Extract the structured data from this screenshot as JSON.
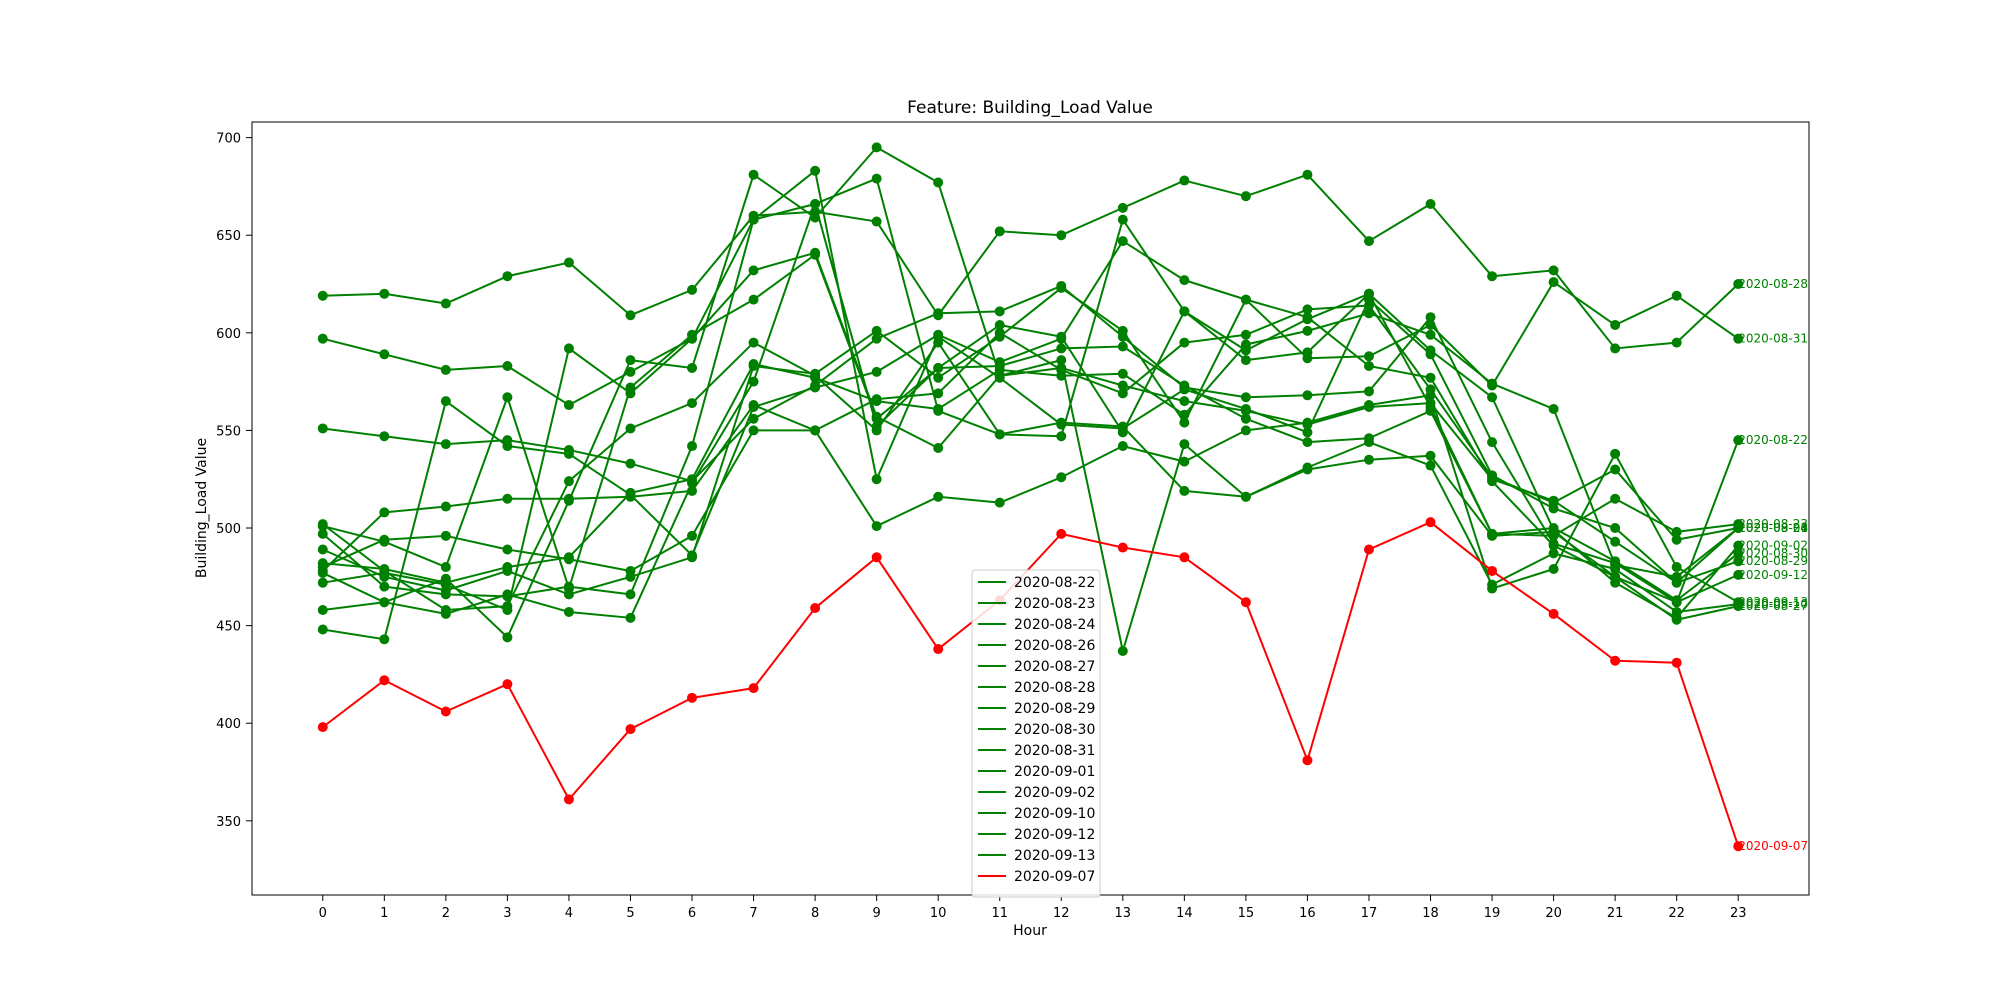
{
  "chart_data": {
    "type": "line",
    "title": "Feature: Building_Load Value",
    "xlabel": "Hour",
    "ylabel": "Building_Load Value",
    "x": [
      0,
      1,
      2,
      3,
      4,
      5,
      6,
      7,
      8,
      9,
      10,
      11,
      12,
      13,
      14,
      15,
      16,
      17,
      18,
      19,
      20,
      21,
      22,
      23
    ],
    "xticks": [
      "0",
      "1",
      "2",
      "3",
      "4",
      "5",
      "6",
      "7",
      "8",
      "9",
      "10",
      "11",
      "12",
      "13",
      "14",
      "15",
      "16",
      "17",
      "18",
      "19",
      "20",
      "21",
      "22",
      "23"
    ],
    "xlim": [
      -1.15,
      24.15
    ],
    "ylim": [
      312,
      708
    ],
    "yticks": [
      "350",
      "400",
      "450",
      "500",
      "550",
      "600",
      "650",
      "700"
    ],
    "grid": false,
    "legend_position": "lower-center",
    "colors": {
      "normal": "#008000",
      "anomaly": "#ff0000"
    },
    "series": [
      {
        "name": "2020-08-22",
        "color": "#008000",
        "values": [
          551,
          547,
          543,
          545,
          540,
          533,
          524,
          556,
          573,
          597,
          610,
          611,
          624,
          598,
          572,
          567,
          568,
          570,
          608,
          544,
          492,
          482,
          462,
          545
        ]
      },
      {
        "name": "2020-08-23",
        "color": "#008000",
        "values": [
          597,
          589,
          581,
          583,
          563,
          580,
          597,
          658,
          666,
          552,
          582,
          583,
          592,
          593,
          573,
          556,
          544,
          546,
          560,
          497,
          496,
          515,
          498,
          502
        ]
      },
      {
        "name": "2020-08-24",
        "color": "#008000",
        "values": [
          482,
          479,
          472,
          480,
          485,
          518,
          525,
          584,
          577,
          565,
          561,
          581,
          578,
          579,
          558,
          594,
          601,
          610,
          599,
          574,
          561,
          481,
          475,
          500
        ]
      },
      {
        "name": "2020-08-26",
        "color": "#008000",
        "values": [
          472,
          477,
          471,
          458,
          592,
          569,
          597,
          632,
          641,
          557,
          541,
          578,
          582,
          573,
          565,
          560,
          553,
          562,
          564,
          525,
          514,
          493,
          472,
          500
        ]
      },
      {
        "name": "2020-08-27",
        "color": "#008000",
        "values": [
          458,
          462,
          456,
          466,
          457,
          454,
          523,
          575,
          666,
          679,
          560,
          548,
          554,
          552,
          519,
          516,
          530,
          535,
          537,
          496,
          498,
          475,
          453,
          460
        ]
      },
      {
        "name": "2020-08-28",
        "color": "#008000",
        "values": [
          619,
          620,
          615,
          629,
          636,
          609,
          622,
          660,
          662,
          657,
          609,
          652,
          650,
          664,
          678,
          670,
          681,
          647,
          666,
          629,
          632,
          592,
          595,
          625
        ]
      },
      {
        "name": "2020-08-29",
        "color": "#008000",
        "values": [
          497,
          470,
          466,
          465,
          470,
          466,
          542,
          658,
          683,
          525,
          598,
          577,
          553,
          551,
          571,
          561,
          549,
          617,
          589,
          527,
          510,
          500,
          472,
          483
        ]
      },
      {
        "name": "2020-08-30",
        "color": "#008000",
        "values": [
          501,
          493,
          480,
          567,
          469,
          572,
          599,
          617,
          640,
          556,
          582,
          604,
          598,
          549,
          611,
          586,
          590,
          620,
          562,
          497,
          500,
          483,
          463,
          487
        ]
      },
      {
        "name": "2020-08-31",
        "color": "#008000",
        "values": [
          448,
          443,
          565,
          542,
          538,
          517,
          486,
          562,
          572,
          580,
          599,
          585,
          597,
          647,
          627,
          617,
          587,
          588,
          604,
          573,
          626,
          604,
          619,
          597
        ]
      },
      {
        "name": "2020-09-01",
        "color": "#008000",
        "values": [
          480,
          494,
          496,
          489,
          484,
          478,
          496,
          550,
          550,
          566,
          569,
          600,
          581,
          569,
          595,
          599,
          612,
          614,
          571,
          526,
          513,
          530,
          494,
          500
        ]
      },
      {
        "name": "2020-09-02",
        "color": "#008000",
        "values": [
          502,
          478,
          458,
          460,
          524,
          551,
          564,
          595,
          578,
          550,
          595,
          548,
          547,
          658,
          611,
          591,
          607,
          620,
          591,
          567,
          499,
          472,
          454,
          491
        ]
      },
      {
        "name": "2020-09-10",
        "color": "#008000",
        "values": [
          477,
          462,
          474,
          444,
          514,
          586,
          582,
          681,
          659,
          695,
          677,
          578,
          586,
          437,
          543,
          516,
          531,
          544,
          532,
          471,
          487,
          479,
          457,
          461
        ]
      },
      {
        "name": "2020-09-12",
        "color": "#008000",
        "values": [
          489,
          475,
          468,
          478,
          466,
          475,
          485,
          583,
          579,
          601,
          577,
          598,
          623,
          601,
          554,
          617,
          608,
          583,
          577,
          524,
          491,
          475,
          462,
          476
        ]
      },
      {
        "name": "2020-09-13",
        "color": "#008000",
        "values": [
          478,
          508,
          511,
          515,
          515,
          516,
          519,
          563,
          550,
          501,
          516,
          513,
          526,
          542,
          534,
          550,
          554,
          563,
          568,
          469,
          479,
          538,
          480,
          462
        ]
      },
      {
        "name": "2020-09-07",
        "color": "#ff0000",
        "values": [
          398,
          422,
          406,
          420,
          361,
          397,
          413,
          418,
          459,
          485,
          438,
          463,
          497,
          490,
          485,
          462,
          381,
          489,
          503,
          478,
          456,
          432,
          431,
          337
        ]
      }
    ]
  }
}
